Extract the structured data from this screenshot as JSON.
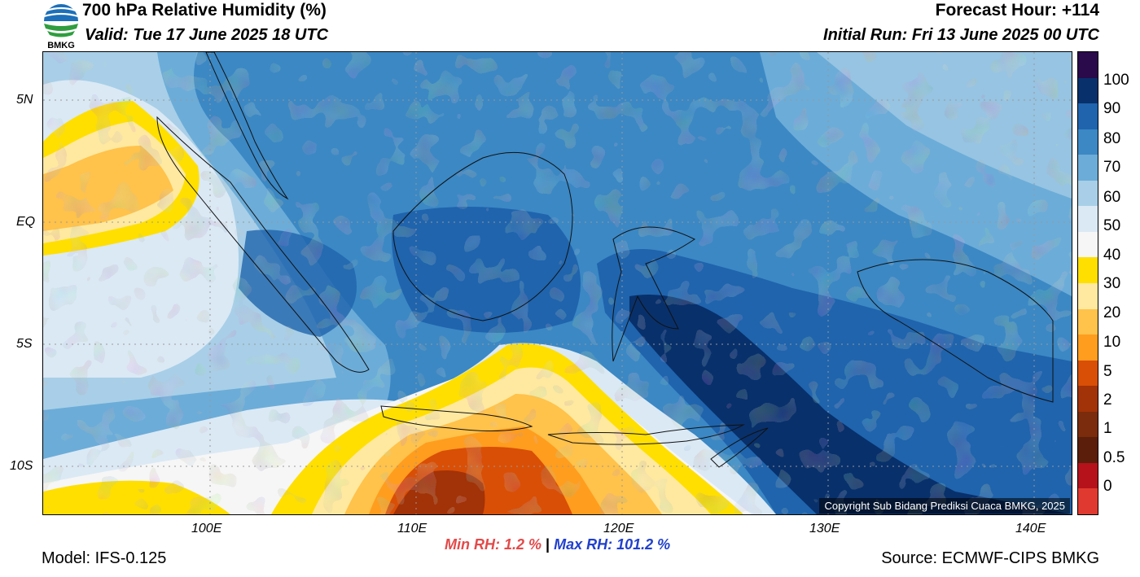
{
  "header": {
    "title": "700 hPa Relative Humidity (%)",
    "valid": "Valid: Tue 17 June 2025 18 UTC",
    "forecast_hour": "Forecast Hour: +114",
    "initial_run": "Initial Run: Fri 13 June 2025 00 UTC"
  },
  "logo": {
    "text": "BMKG",
    "icon": "bmkg-logo-icon"
  },
  "map": {
    "latitude_ticks": [
      "5N",
      "EQ",
      "5S",
      "10S"
    ],
    "longitude_ticks": [
      "100E",
      "110E",
      "120E",
      "130E",
      "140E"
    ],
    "copyright": "Copyright Sub Bidang Prediksi Cuaca BMKG, 2025"
  },
  "legend": {
    "labels": [
      "100",
      "90",
      "80",
      "70",
      "60",
      "50",
      "40",
      "30",
      "20",
      "10",
      "5",
      "2",
      "1",
      "0.5",
      "0"
    ],
    "colors": [
      "#2a0a4a",
      "#08306b",
      "#1f64ad",
      "#3b88c4",
      "#6cacd8",
      "#a8cfe7",
      "#dbe9f5",
      "#f6f6f6",
      "#ffdf00",
      "#ffe9a0",
      "#ffc24b",
      "#ff9d1e",
      "#d94f06",
      "#a23207",
      "#7a2c0c",
      "#5a1e0a",
      "#b5121b",
      "#e03a30"
    ]
  },
  "footer": {
    "min_rh": "Min RH:   1.2 %",
    "separator": "|",
    "max_rh": "Max RH: 101.2 %",
    "model": "Model: IFS-0.125",
    "source": "Source: ECMWF-CIPS BMKG"
  }
}
